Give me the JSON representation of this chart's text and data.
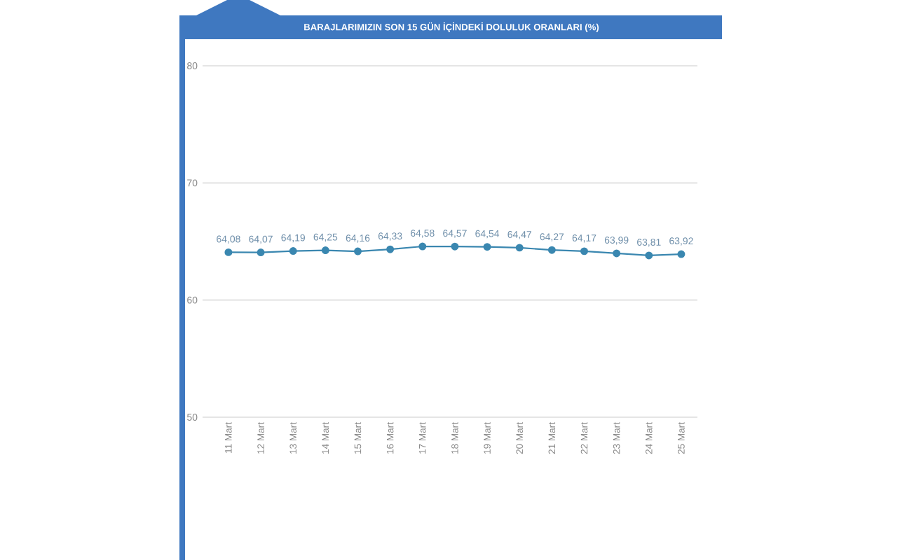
{
  "chart_data": {
    "type": "line",
    "title": "BARAJLARIMIZIN SON 15 GÜN İÇİNDEKİ DOLULUK ORANLARI (%)",
    "categories": [
      "11 Mart",
      "12 Mart",
      "13 Mart",
      "14 Mart",
      "15 Mart",
      "16 Mart",
      "17 Mart",
      "18 Mart",
      "19 Mart",
      "20 Mart",
      "21 Mart",
      "22 Mart",
      "23 Mart",
      "24 Mart",
      "25 Mart"
    ],
    "values": [
      64.08,
      64.07,
      64.19,
      64.25,
      64.16,
      64.33,
      64.58,
      64.57,
      64.54,
      64.47,
      64.27,
      64.17,
      63.99,
      63.81,
      63.92
    ],
    "value_labels": [
      "64,08",
      "64,07",
      "64,19",
      "64,25",
      "64,16",
      "64,33",
      "64,58",
      "64,57",
      "64,54",
      "64,47",
      "64,27",
      "64,17",
      "63,99",
      "63,81",
      "63,92"
    ],
    "color": "#3a87b0",
    "marker": "circle",
    "line_style": "solid",
    "ylim": [
      50,
      80
    ],
    "yticks": [
      50,
      60,
      70,
      80
    ],
    "grid": "y"
  }
}
